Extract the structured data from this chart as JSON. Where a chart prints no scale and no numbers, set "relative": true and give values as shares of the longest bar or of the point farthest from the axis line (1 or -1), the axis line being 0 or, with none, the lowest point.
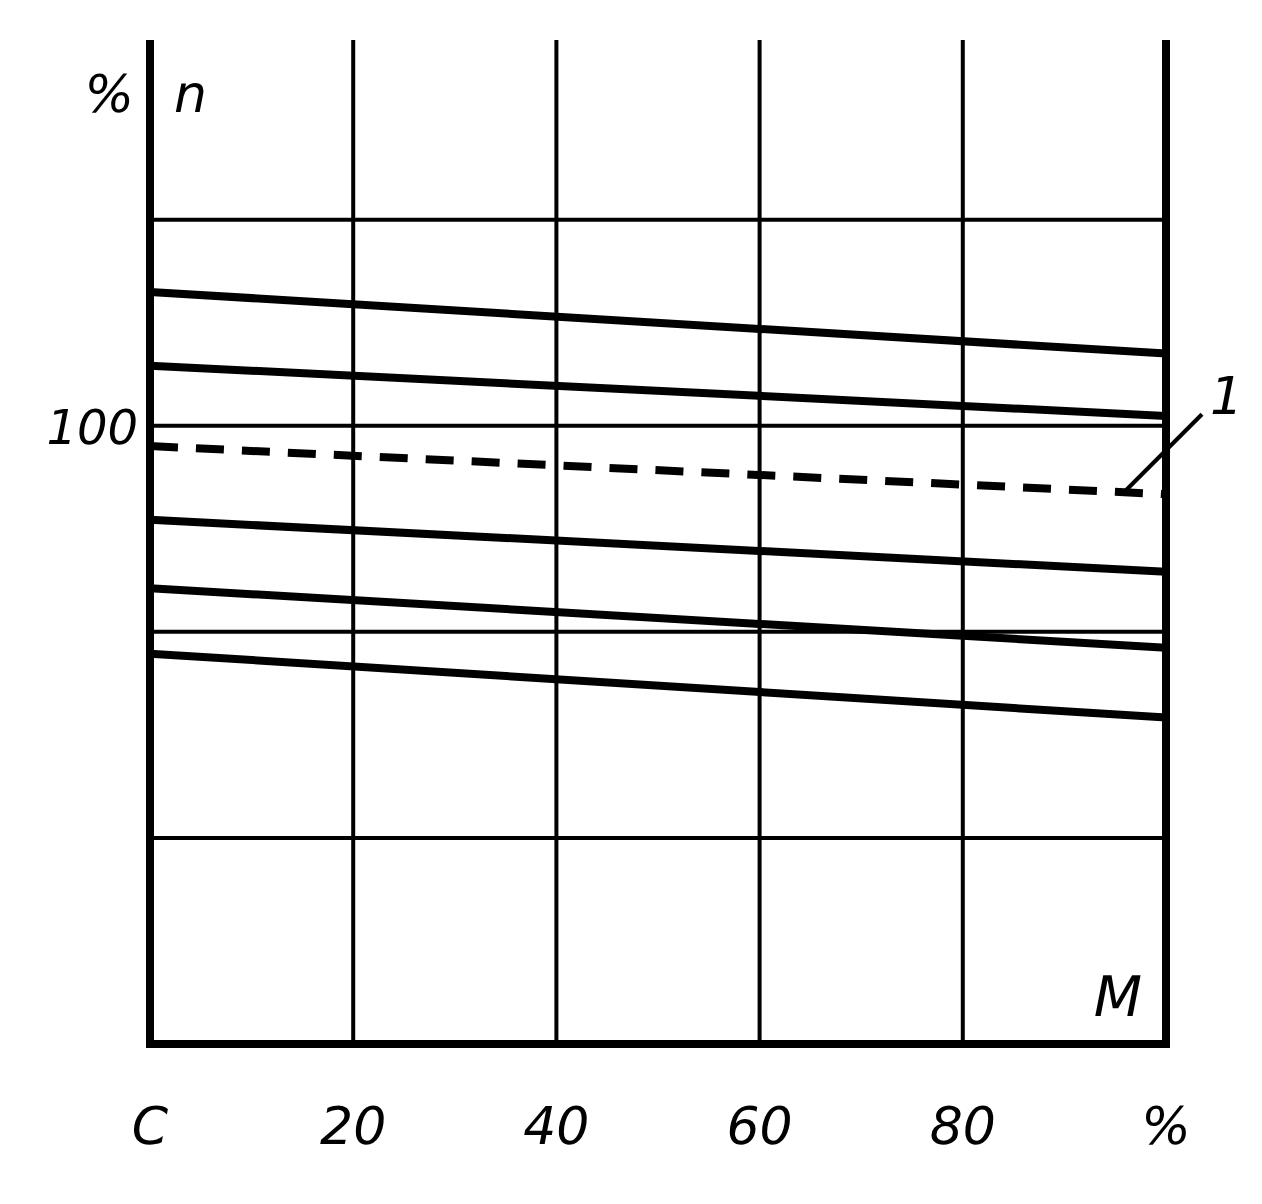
{
  "chart_data": {
    "type": "line",
    "relative": true,
    "ylabel": "% n",
    "xlabel": "M",
    "x": [
      0,
      100
    ],
    "xlim": [
      0,
      100
    ],
    "xticks": [
      {
        "value": 0,
        "label": "C"
      },
      20,
      40,
      60,
      80,
      {
        "value": 100,
        "label": "%"
      }
    ],
    "grid": true,
    "line_style": "solid",
    "annotations": [
      "100"
    ],
    "series": [
      {
        "color": "#000000",
        "values": [
          1,
          0.918
        ]
      },
      {
        "color": "#000000",
        "values": [
          0.902,
          0.835
        ]
      },
      {
        "name": "1",
        "color": "#000000",
        "line_style": "dashed",
        "values": [
          0.795,
          0.731
        ]
      },
      {
        "color": "#000000",
        "values": [
          0.697,
          0.628
        ]
      },
      {
        "color": "#000000",
        "values": [
          0.606,
          0.527
        ]
      },
      {
        "color": "#000000",
        "values": [
          0.519,
          0.434
        ]
      }
    ]
  }
}
